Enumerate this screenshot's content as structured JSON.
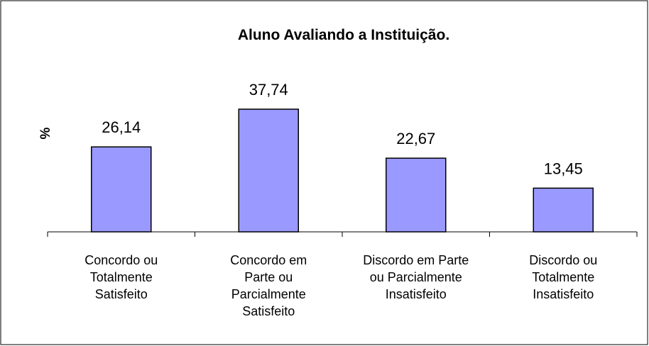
{
  "chart_data": {
    "type": "bar",
    "title": "Aluno Avaliando a Instituição.",
    "ylabel": "%",
    "categories": [
      "Concordo ou\nTotalmente\nSatisfeito",
      "Concordo em\nParte ou\nParcialmente\nSatisfeito",
      "Discordo em Parte\nou Parcialmente\nInsatisfeito",
      "Discordo ou\nTotalmente\nInsatisfeito"
    ],
    "values": [
      26.14,
      37.74,
      22.67,
      13.45
    ],
    "value_labels": [
      "26,14",
      "37,74",
      "22,67",
      "13,45"
    ],
    "color": "#9999ff"
  }
}
